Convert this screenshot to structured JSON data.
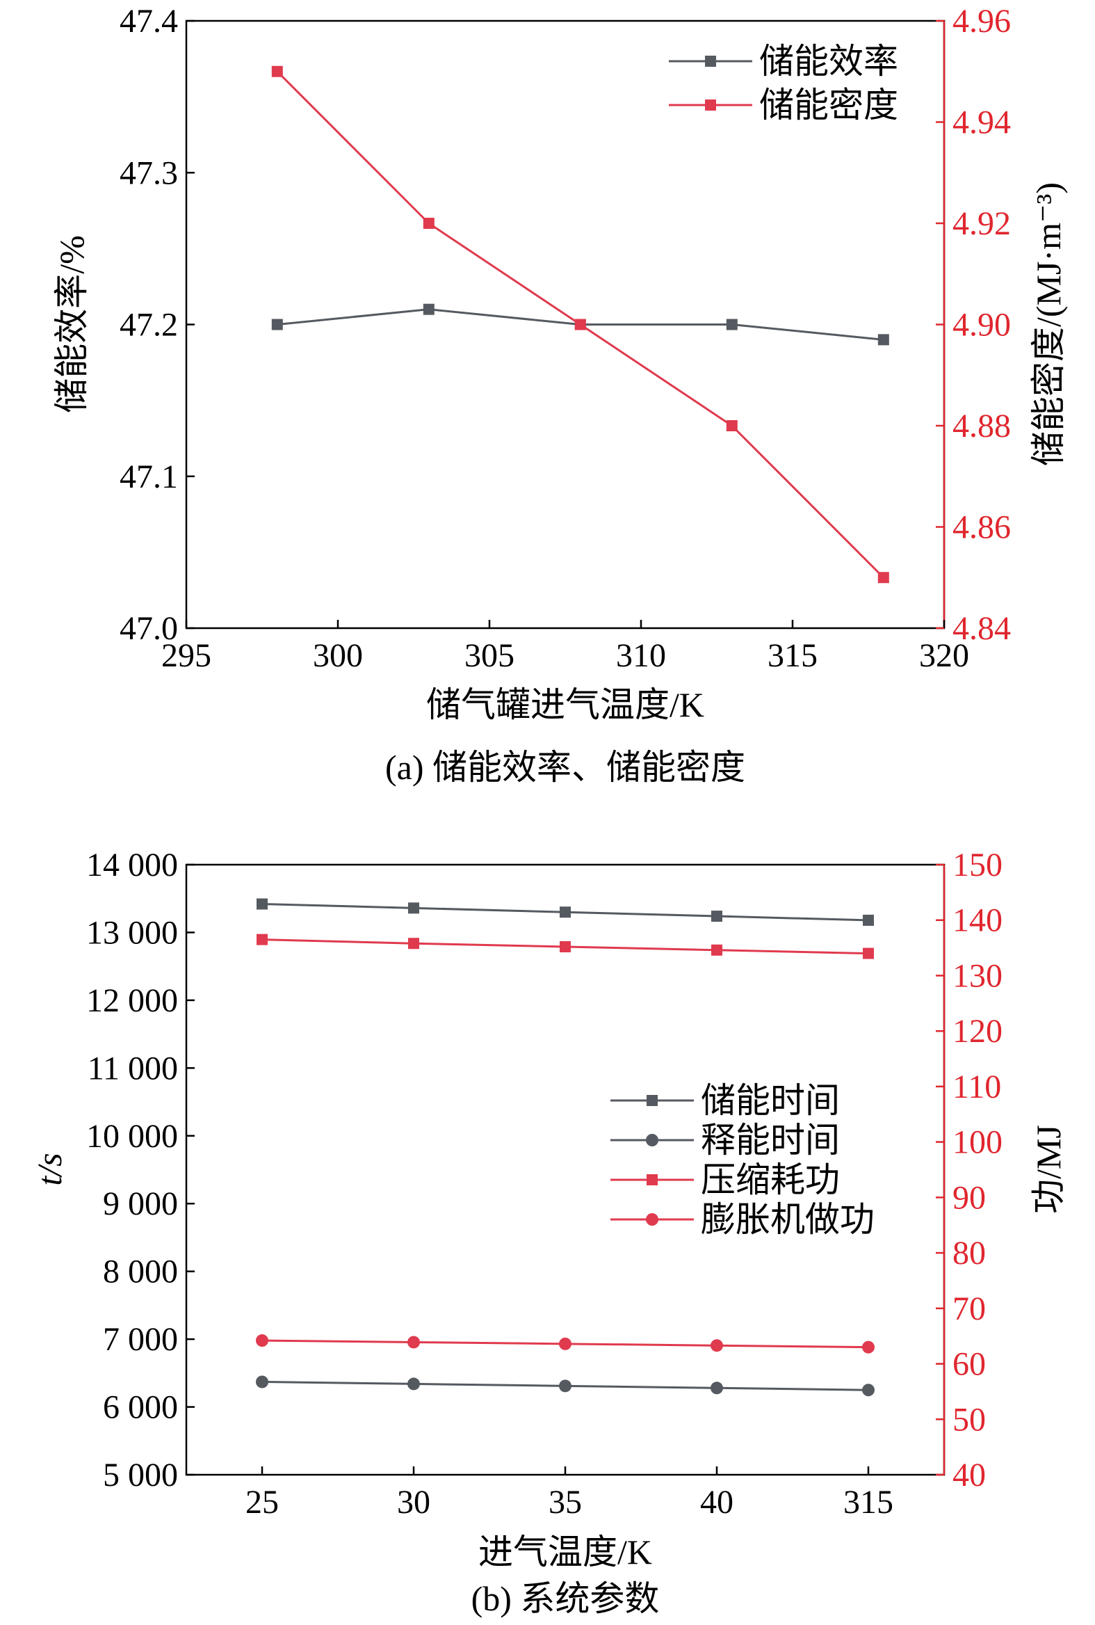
{
  "colors": {
    "black_series": "#555a60",
    "red_series": "#e03a4e",
    "right_axis": "#e0262e",
    "axis": "#000000"
  },
  "chart_data": [
    {
      "type": "line",
      "caption": "(a) 储能效率、储能密度",
      "xlabel": "储气罐进气温度/K",
      "ylabel_left": "储能效率/%",
      "ylabel_right": "储能密度/(MJ·m⁻³)",
      "x": [
        298,
        303,
        308,
        313,
        318
      ],
      "xlim": [
        295,
        320
      ],
      "xticks": [
        "295",
        "300",
        "305",
        "310",
        "315",
        "320"
      ],
      "ylim_left": [
        47.0,
        47.4
      ],
      "yticks_left": [
        "47.0",
        "47.1",
        "47.2",
        "47.3",
        "47.4"
      ],
      "ylim_right": [
        4.84,
        4.96
      ],
      "yticks_right": [
        "4.84",
        "4.86",
        "4.88",
        "4.90",
        "4.92",
        "4.94",
        "4.96"
      ],
      "legend_position": "top-right",
      "grid": false,
      "series": [
        {
          "name": "储能效率",
          "axis": "left",
          "marker": "square",
          "color": "black_series",
          "values": [
            47.2,
            47.21,
            47.2,
            47.2,
            47.19
          ]
        },
        {
          "name": "储能密度",
          "axis": "right",
          "marker": "square",
          "color": "red_series",
          "values": [
            4.95,
            4.92,
            4.9,
            4.88,
            4.85
          ]
        }
      ]
    },
    {
      "type": "line",
      "caption": "(b) 系统参数",
      "xlabel": "进气温度/K",
      "ylabel_left": "t/s",
      "ylabel_right": "功/MJ",
      "categories": [
        "25",
        "30",
        "35",
        "40",
        "315"
      ],
      "ylim_left": [
        5000,
        14000
      ],
      "yticks_left": [
        "5 000",
        "6 000",
        "7 000",
        "8 000",
        "9 000",
        "10 000",
        "11 000",
        "12 000",
        "13 000",
        "14 000"
      ],
      "ylim_right": [
        40,
        150
      ],
      "yticks_right": [
        "40",
        "50",
        "60",
        "70",
        "80",
        "90",
        "100",
        "110",
        "120",
        "130",
        "140",
        "150"
      ],
      "legend_position": "center-right",
      "grid": false,
      "series": [
        {
          "name": "储能时间",
          "axis": "left",
          "marker": "square",
          "color": "black_series",
          "values": [
            13420,
            13360,
            13300,
            13240,
            13180
          ]
        },
        {
          "name": "释能时间",
          "axis": "left",
          "marker": "circle",
          "color": "black_series",
          "values": [
            6370,
            6340,
            6310,
            6280,
            6250
          ]
        },
        {
          "name": "压缩耗功",
          "axis": "right",
          "marker": "square",
          "color": "red_series",
          "values": [
            136.5,
            135.8,
            135.2,
            134.6,
            134.0
          ]
        },
        {
          "name": "膨胀机做功",
          "axis": "right",
          "marker": "circle",
          "color": "red_series",
          "values": [
            64.2,
            63.9,
            63.6,
            63.3,
            63.0
          ]
        }
      ]
    }
  ]
}
